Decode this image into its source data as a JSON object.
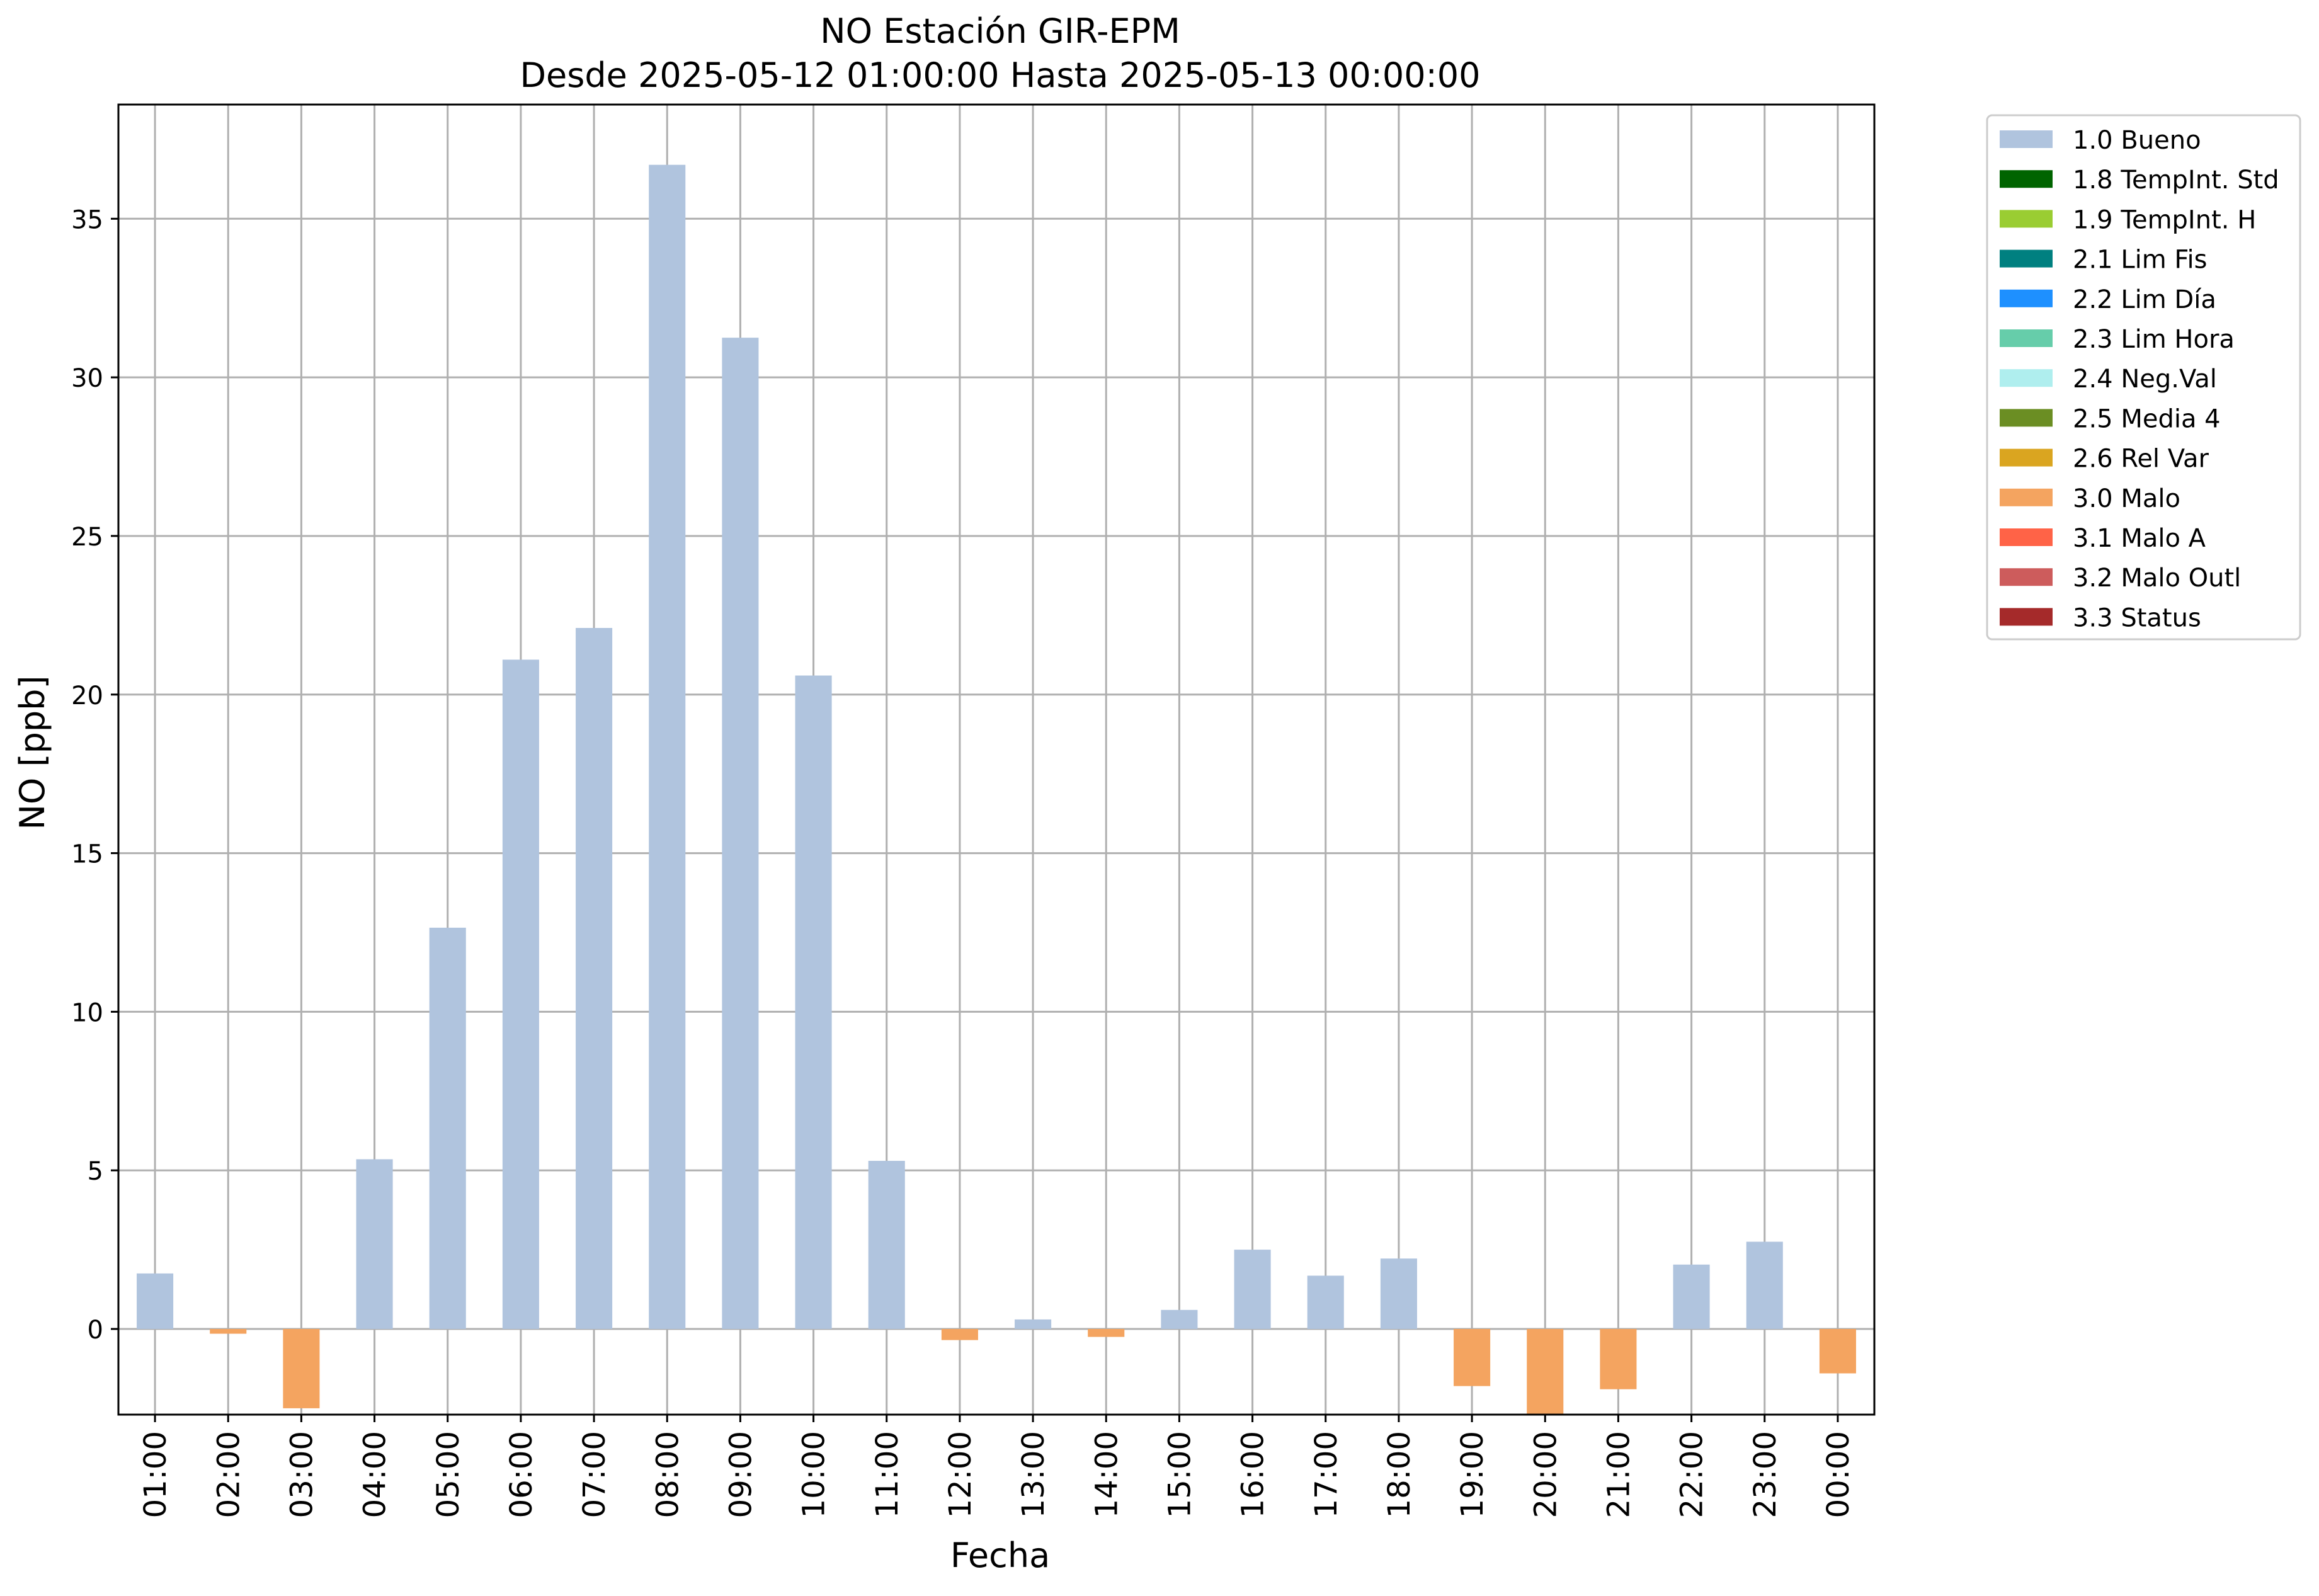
{
  "chart_data": {
    "type": "bar",
    "title": "NO Estación GIR-EPM",
    "subtitle": "Desde 2025-05-12 01:00:00 Hasta 2025-05-13 00:00:00",
    "xlabel": "Fecha",
    "ylabel": "NO [ppb]",
    "ylim": [
      -2.7,
      38.6
    ],
    "yticks": [
      0,
      5,
      10,
      15,
      20,
      25,
      30,
      35
    ],
    "grid": true,
    "legend_position": "outside-top-right",
    "categories": [
      "01:00",
      "02:00",
      "03:00",
      "04:00",
      "05:00",
      "06:00",
      "07:00",
      "08:00",
      "09:00",
      "10:00",
      "11:00",
      "12:00",
      "13:00",
      "14:00",
      "15:00",
      "16:00",
      "17:00",
      "18:00",
      "19:00",
      "20:00",
      "21:00",
      "22:00",
      "23:00",
      "00:00"
    ],
    "values": [
      1.75,
      -0.15,
      -2.5,
      5.35,
      12.65,
      21.1,
      22.1,
      36.7,
      31.25,
      20.6,
      5.3,
      -0.35,
      0.3,
      -0.25,
      0.6,
      2.5,
      1.68,
      2.22,
      -1.8,
      -2.7,
      -1.9,
      2.03,
      2.75,
      -1.4
    ],
    "flags": [
      "1.0 Bueno",
      "3.0 Malo",
      "3.0 Malo",
      "1.0 Bueno",
      "1.0 Bueno",
      "1.0 Bueno",
      "1.0 Bueno",
      "1.0 Bueno",
      "1.0 Bueno",
      "1.0 Bueno",
      "1.0 Bueno",
      "3.0 Malo",
      "1.0 Bueno",
      "3.0 Malo",
      "1.0 Bueno",
      "1.0 Bueno",
      "1.0 Bueno",
      "1.0 Bueno",
      "3.0 Malo",
      "3.0 Malo",
      "3.0 Malo",
      "1.0 Bueno",
      "1.0 Bueno",
      "3.0 Malo"
    ],
    "legend": [
      {
        "label": "1.0 Bueno",
        "color": "#b0c4de"
      },
      {
        "label": "1.8 TempInt. Std",
        "color": "#006400"
      },
      {
        "label": "1.9 TempInt. H",
        "color": "#9acd32"
      },
      {
        "label": "2.1 Lim Fis",
        "color": "#008080"
      },
      {
        "label": "2.2 Lim Día",
        "color": "#1e90ff"
      },
      {
        "label": "2.3 Lim Hora",
        "color": "#66cdaa"
      },
      {
        "label": "2.4 Neg.Val",
        "color": "#afeeee"
      },
      {
        "label": "2.5 Media 4",
        "color": "#6b8e23"
      },
      {
        "label": "2.6 Rel Var",
        "color": "#daa520"
      },
      {
        "label": "3.0 Malo",
        "color": "#f4a460"
      },
      {
        "label": "3.1 Malo A",
        "color": "#ff6347"
      },
      {
        "label": "3.2 Malo Outl",
        "color": "#cd5c5c"
      },
      {
        "label": "3.3 Status",
        "color": "#a52a2a"
      }
    ]
  }
}
